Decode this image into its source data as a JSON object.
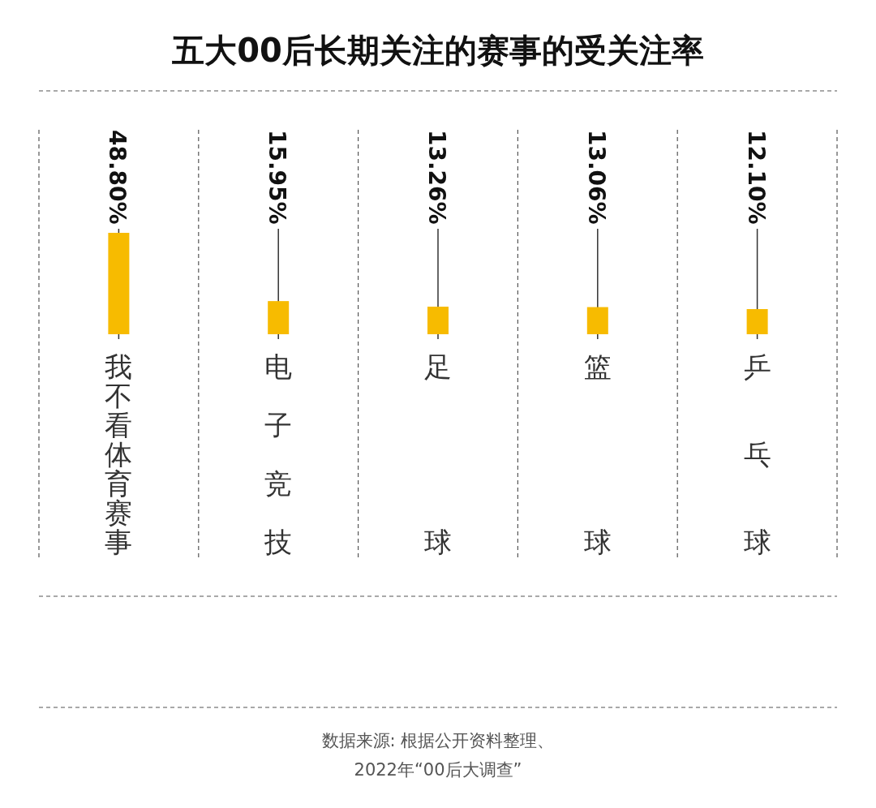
{
  "chart_data": {
    "type": "bar",
    "title": "五大00后长期关注的赛事的受关注率",
    "categories": [
      "我不看体育赛事",
      "电子竞技",
      "足球",
      "篮球",
      "乒乓球"
    ],
    "values": [
      48.8,
      15.95,
      13.26,
      13.06,
      12.1
    ],
    "value_labels": [
      "48.80%",
      "15.95%",
      "13.26%",
      "13.06%",
      "12.10%"
    ],
    "color": "#f7bb00",
    "grid": true,
    "annotations": [
      "数据来源: 根据公开资料整理、",
      "2022年“00后大调查”"
    ]
  }
}
